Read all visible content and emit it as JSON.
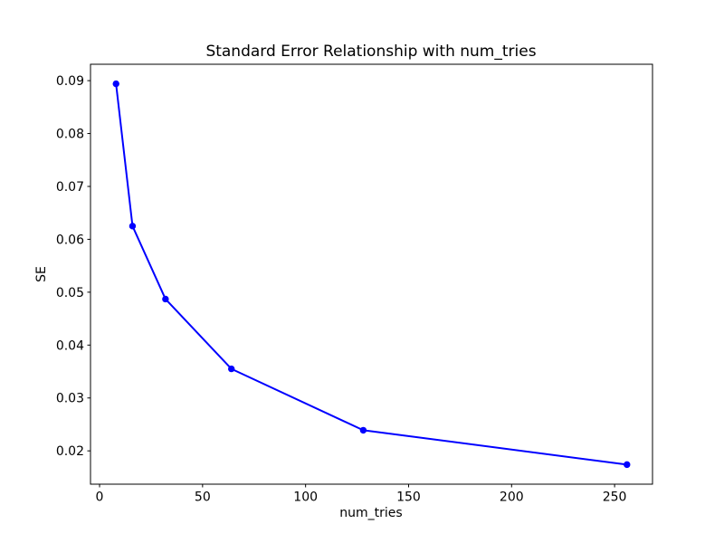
{
  "figure": {
    "background": "#ffffff"
  },
  "chart_data": {
    "type": "line",
    "title": "Standard Error Relationship with num_tries",
    "xlabel": "num_tries",
    "ylabel": "SE",
    "series": [
      {
        "name": "SE",
        "x": [
          8,
          16,
          32,
          64,
          128,
          256
        ],
        "y": [
          0.0894,
          0.0625,
          0.0487,
          0.0355,
          0.0239,
          0.0174
        ],
        "color": "#0000ff",
        "marker": "circle",
        "line_style": "solid"
      }
    ],
    "xlim": [
      -4.4,
      268.4
    ],
    "ylim": [
      0.0137,
      0.0931
    ],
    "xticks": [
      0,
      50,
      100,
      150,
      200,
      250
    ],
    "xtick_labels": [
      "0",
      "50",
      "100",
      "150",
      "200",
      "250"
    ],
    "yticks": [
      0.02,
      0.03,
      0.04,
      0.05,
      0.06,
      0.07,
      0.08,
      0.09
    ],
    "ytick_labels": [
      "0.02",
      "0.03",
      "0.04",
      "0.05",
      "0.06",
      "0.07",
      "0.08",
      "0.09"
    ],
    "grid": false,
    "legend": null,
    "axes_color": "#000000",
    "text_color": "#000000"
  }
}
